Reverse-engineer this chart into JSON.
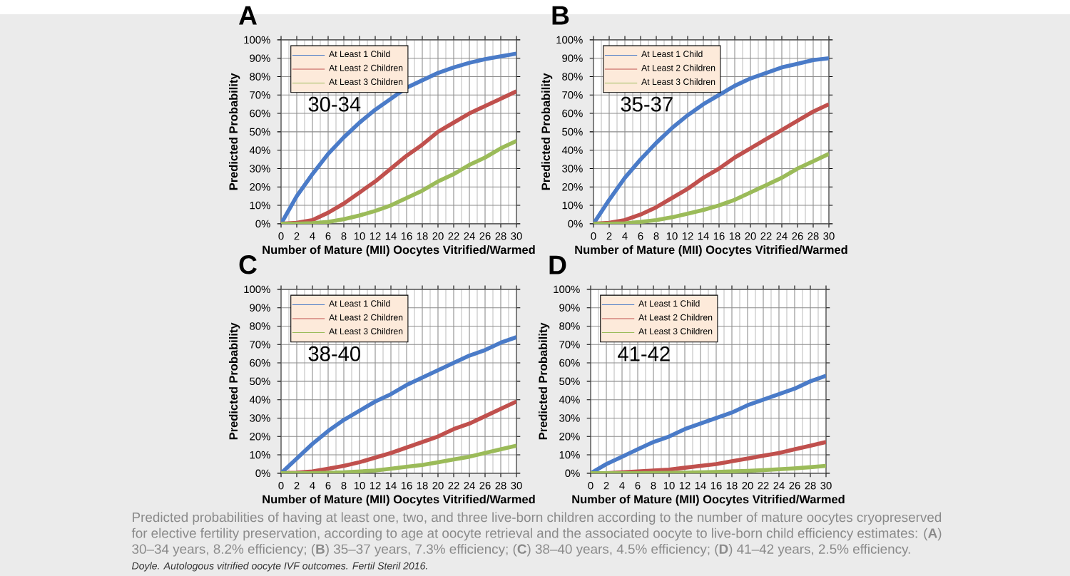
{
  "chart_data": [
    {
      "type": "line",
      "title": "A",
      "xlabel": "Number of Mature (MII) Oocytes Vitrified/Warmed",
      "ylabel": "Predicted Probability",
      "annotations": [
        "30-34"
      ],
      "x": [
        0,
        2,
        4,
        6,
        8,
        10,
        12,
        14,
        16,
        18,
        20,
        22,
        24,
        26,
        28,
        30
      ],
      "series": [
        {
          "name": "At Least 1 Child",
          "color": "#4a7bc8",
          "values": [
            0,
            15,
            27,
            38,
            47,
            55,
            62,
            68,
            74,
            78,
            82,
            85,
            87.5,
            89.5,
            91,
            92.5
          ]
        },
        {
          "name": "At Least 2 Children",
          "color": "#c0504d",
          "values": [
            0,
            0.5,
            2,
            6,
            11,
            17,
            23,
            30,
            37,
            43,
            50,
            55,
            60,
            64,
            68,
            72
          ]
        },
        {
          "name": "At Least 3 Children",
          "color": "#9bbb59",
          "values": [
            0,
            0,
            0.3,
            1,
            2.5,
            4.5,
            7,
            10,
            14,
            18,
            23,
            27,
            32,
            36,
            41,
            45
          ]
        }
      ],
      "xlim": [
        0,
        30
      ],
      "ylim": [
        0,
        100
      ],
      "xticks": [
        0,
        2,
        4,
        6,
        8,
        10,
        12,
        14,
        16,
        18,
        20,
        22,
        24,
        26,
        28,
        30
      ],
      "yticks": [
        {
          "value": 0,
          "label": "0%"
        },
        {
          "value": 10,
          "label": "10%"
        },
        {
          "value": 20,
          "label": "20%"
        },
        {
          "value": 30,
          "label": "30%"
        },
        {
          "value": 40,
          "label": "40%"
        },
        {
          "value": 50,
          "label": "50%"
        },
        {
          "value": 60,
          "label": "60%"
        },
        {
          "value": 70,
          "label": "70%"
        },
        {
          "value": 80,
          "label": "80%"
        },
        {
          "value": 90,
          "label": "90%"
        },
        {
          "value": 100,
          "label": "100%"
        }
      ],
      "grid": true,
      "legend": "top left"
    },
    {
      "type": "line",
      "title": "B",
      "xlabel": "Number of Mature (MII) Oocytes Vitrified/Warmed",
      "ylabel": "Predicted Probability",
      "annotations": [
        "35-37"
      ],
      "x": [
        0,
        2,
        4,
        6,
        8,
        10,
        12,
        14,
        16,
        18,
        20,
        22,
        24,
        26,
        28,
        30
      ],
      "series": [
        {
          "name": "At Least 1 Child",
          "color": "#4a7bc8",
          "values": [
            0,
            13,
            25,
            35,
            44,
            52,
            59,
            65,
            70,
            75,
            79,
            82,
            85,
            87,
            89,
            90
          ]
        },
        {
          "name": "At Least 2 Children",
          "color": "#c0504d",
          "values": [
            0,
            0.5,
            2,
            5,
            9,
            14,
            19,
            25,
            30,
            36,
            41,
            46,
            51,
            56,
            61,
            65
          ]
        },
        {
          "name": "At Least 3 Children",
          "color": "#9bbb59",
          "values": [
            0,
            0,
            0.2,
            1,
            2,
            3.5,
            5.5,
            7.5,
            10,
            13,
            17,
            21,
            25,
            30,
            34,
            38
          ]
        }
      ],
      "xlim": [
        0,
        30
      ],
      "ylim": [
        0,
        100
      ],
      "xticks": [
        0,
        2,
        4,
        6,
        8,
        10,
        12,
        14,
        16,
        18,
        20,
        22,
        24,
        26,
        28,
        30
      ],
      "yticks": [
        {
          "value": 0,
          "label": "0%"
        },
        {
          "value": 10,
          "label": "10%"
        },
        {
          "value": 20,
          "label": "20%"
        },
        {
          "value": 30,
          "label": "30%"
        },
        {
          "value": 40,
          "label": "40%"
        },
        {
          "value": 50,
          "label": "50%"
        },
        {
          "value": 60,
          "label": "60%"
        },
        {
          "value": 70,
          "label": "70%"
        },
        {
          "value": 80,
          "label": "80%"
        },
        {
          "value": 90,
          "label": "90%"
        },
        {
          "value": 100,
          "label": "100%"
        }
      ],
      "grid": true,
      "legend": "top left"
    },
    {
      "type": "line",
      "title": "C",
      "xlabel": "Number of Mature (MII) Oocytes Vitrified/Warmed",
      "ylabel": "Predicted Probability",
      "annotations": [
        "38-40"
      ],
      "x": [
        0,
        2,
        4,
        6,
        8,
        10,
        12,
        14,
        16,
        18,
        20,
        22,
        24,
        26,
        28,
        30
      ],
      "series": [
        {
          "name": "At Least 1 Child",
          "color": "#4a7bc8",
          "values": [
            0,
            8,
            16,
            23,
            29,
            34,
            39,
            43,
            48,
            52,
            56,
            60,
            64,
            67,
            71,
            74
          ]
        },
        {
          "name": "At Least 2 Children",
          "color": "#c0504d",
          "values": [
            0,
            0.3,
            1,
            2.5,
            4,
            6,
            8.5,
            11,
            14,
            17,
            20,
            24,
            27,
            31,
            35,
            39
          ]
        },
        {
          "name": "At Least 3 Children",
          "color": "#9bbb59",
          "values": [
            0,
            0,
            0,
            0.2,
            0.5,
            1,
            1.5,
            2.5,
            3.5,
            4.5,
            6,
            7.5,
            9,
            11,
            13,
            15
          ]
        }
      ],
      "xlim": [
        0,
        30
      ],
      "ylim": [
        0,
        100
      ],
      "xticks": [
        0,
        2,
        4,
        6,
        8,
        10,
        12,
        14,
        16,
        18,
        20,
        22,
        24,
        26,
        28,
        30
      ],
      "yticks": [
        {
          "value": 0,
          "label": "0%"
        },
        {
          "value": 10,
          "label": "10%"
        },
        {
          "value": 20,
          "label": "20%"
        },
        {
          "value": 30,
          "label": "30%"
        },
        {
          "value": 40,
          "label": "40%"
        },
        {
          "value": 50,
          "label": "50%"
        },
        {
          "value": 60,
          "label": "60%"
        },
        {
          "value": 70,
          "label": "70%"
        },
        {
          "value": 80,
          "label": "80%"
        },
        {
          "value": 90,
          "label": "90%"
        },
        {
          "value": 100,
          "label": "100%"
        }
      ],
      "grid": true,
      "legend": "top left"
    },
    {
      "type": "line",
      "title": "D",
      "xlabel": "Number of Mature (MII) Oocytes Vitrified/Warmed",
      "ylabel": "Predicted Probability",
      "annotations": [
        "41-42",
        "Predicted probabilities of having at least one, two, and three live-born children according to the number of mature oocytes cryopreserved for elective fertility preservation, according to age at oocyte retrieval and the associated oocyte to live-born child efficiency estimates: (**A**) 30–34 years, 8.2% efficiency; (**B**) 35–37 years, 7.3% efficiency; (**C**) 38–40 years, 4.5% efficiency; (**D**) 41–42 years, 2.5% efficiency.",
        "Doyle. Autologous vitrified oocyte IVF outcomes. Fertil Steril 2016."
      ],
      "x": [
        0,
        2,
        4,
        6,
        8,
        10,
        12,
        14,
        16,
        18,
        20,
        22,
        24,
        26,
        28,
        30
      ],
      "series": [
        {
          "name": "At Least 1 Child",
          "color": "#4a7bc8",
          "values": [
            0,
            5,
            9,
            13,
            17,
            20,
            24,
            27,
            30,
            33,
            37,
            40,
            43,
            46,
            50,
            53
          ]
        },
        {
          "name": "At Least 2 Children",
          "color": "#c0504d",
          "values": [
            0,
            0,
            0.5,
            1,
            1.5,
            2,
            3,
            4,
            5,
            6.5,
            8,
            9.5,
            11,
            13,
            15,
            17
          ]
        },
        {
          "name": "At Least 3 Children",
          "color": "#9bbb59",
          "values": [
            0,
            0,
            0,
            0,
            0.1,
            0.2,
            0.3,
            0.5,
            0.7,
            1,
            1.3,
            1.7,
            2.2,
            2.7,
            3.3,
            4
          ]
        }
      ],
      "xlim": [
        0,
        30
      ],
      "ylim": [
        0,
        100
      ],
      "xticks": [
        0,
        2,
        4,
        6,
        8,
        10,
        12,
        14,
        16,
        18,
        20,
        22,
        24,
        26,
        28,
        30
      ],
      "yticks": [
        {
          "value": 0,
          "label": "0%"
        },
        {
          "value": 10,
          "label": "10%"
        },
        {
          "value": 20,
          "label": "20%"
        },
        {
          "value": 30,
          "label": "30%"
        },
        {
          "value": 40,
          "label": "40%"
        },
        {
          "value": 50,
          "label": "50%"
        },
        {
          "value": 60,
          "label": "60%"
        },
        {
          "value": 70,
          "label": "70%"
        },
        {
          "value": 80,
          "label": "80%"
        },
        {
          "value": 90,
          "label": "90%"
        },
        {
          "value": 100,
          "label": "100%"
        }
      ],
      "grid": true,
      "legend": "top left"
    }
  ]
}
